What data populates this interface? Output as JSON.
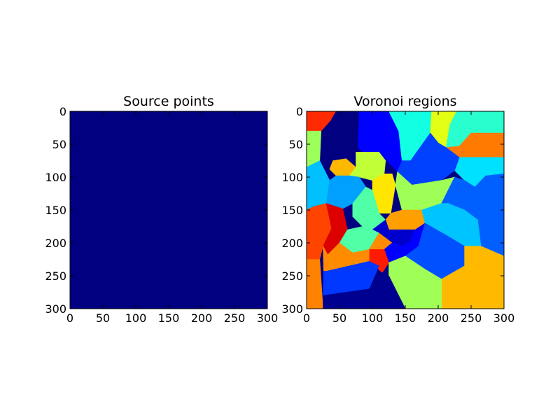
{
  "chart_data": [
    {
      "type": "heatmap",
      "title": "Source points",
      "xlim": [
        0,
        300
      ],
      "ylim": [
        300,
        0
      ],
      "xticks": [
        0,
        50,
        100,
        150,
        200,
        250,
        300
      ],
      "yticks": [
        0,
        50,
        100,
        150,
        200,
        250,
        300
      ],
      "xlabel": "",
      "ylabel": "",
      "background_color": "#000080",
      "colormap": "jet",
      "grid": false
    },
    {
      "type": "heatmap",
      "title": "Voronoi regions",
      "xlim": [
        0,
        300
      ],
      "ylim": [
        300,
        0
      ],
      "xticks": [
        0,
        50,
        100,
        150,
        200,
        250,
        300
      ],
      "yticks": [
        0,
        50,
        100,
        150,
        200,
        250,
        300
      ],
      "xlabel": "",
      "ylabel": "",
      "colormap": "jet",
      "grid": false,
      "regions": [
        {
          "color": "#ff2a00",
          "polygon": [
            [
              0,
              0
            ],
            [
              45,
              0
            ],
            [
              38,
              12
            ],
            [
              22,
              30
            ],
            [
              0,
              30
            ]
          ]
        },
        {
          "color": "#000080",
          "polygon": [
            [
              45,
              0
            ],
            [
              80,
              0
            ],
            [
              78,
              55
            ],
            [
              60,
              55
            ],
            [
              50,
              45
            ],
            [
              42,
              30
            ],
            [
              38,
              12
            ]
          ]
        },
        {
          "color": "#0000ff",
          "polygon": [
            [
              80,
              0
            ],
            [
              125,
              0
            ],
            [
              140,
              30
            ],
            [
              145,
              75
            ],
            [
              138,
              92
            ],
            [
              110,
              62
            ],
            [
              85,
              62
            ],
            [
              78,
              55
            ]
          ]
        },
        {
          "color": "#13ffe3",
          "polygon": [
            [
              125,
              0
            ],
            [
              190,
              0
            ],
            [
              188,
              33
            ],
            [
              158,
              75
            ],
            [
              145,
              75
            ],
            [
              140,
              30
            ]
          ]
        },
        {
          "color": "#e3ff13",
          "polygon": [
            [
              190,
              0
            ],
            [
              228,
              0
            ],
            [
              218,
              20
            ],
            [
              212,
              55
            ],
            [
              200,
              48
            ],
            [
              188,
              33
            ]
          ]
        },
        {
          "color": "#29ffce",
          "polygon": [
            [
              228,
              0
            ],
            [
              300,
              0
            ],
            [
              300,
              33
            ],
            [
              250,
              33
            ],
            [
              232,
              53
            ],
            [
              212,
              55
            ],
            [
              218,
              20
            ]
          ]
        },
        {
          "color": "#ff7a00",
          "polygon": [
            [
              250,
              33
            ],
            [
              300,
              33
            ],
            [
              300,
              70
            ],
            [
              232,
              70
            ],
            [
              212,
              55
            ],
            [
              232,
              53
            ]
          ]
        },
        {
          "color": "#00e0ff",
          "polygon": [
            [
              232,
              70
            ],
            [
              300,
              70
            ],
            [
              300,
              95
            ],
            [
              272,
              98
            ],
            [
              256,
              115
            ],
            [
              240,
              105
            ],
            [
              225,
              90
            ]
          ]
        },
        {
          "color": "#0040ff",
          "polygon": [
            [
              188,
              33
            ],
            [
              200,
              48
            ],
            [
              212,
              55
            ],
            [
              232,
              70
            ],
            [
              225,
              90
            ],
            [
              205,
              105
            ],
            [
              160,
              112
            ],
            [
              138,
              92
            ],
            [
              145,
              75
            ],
            [
              158,
              75
            ]
          ]
        },
        {
          "color": "#9cff5a",
          "polygon": [
            [
              0,
              30
            ],
            [
              22,
              30
            ],
            [
              20,
              75
            ],
            [
              0,
              85
            ]
          ]
        },
        {
          "color": "#00c0ff",
          "polygon": [
            [
              0,
              85
            ],
            [
              20,
              75
            ],
            [
              35,
              105
            ],
            [
              30,
              140
            ],
            [
              10,
              145
            ],
            [
              0,
              150
            ]
          ]
        },
        {
          "color": "#ffb800",
          "polygon": [
            [
              40,
              75
            ],
            [
              60,
              72
            ],
            [
              75,
              85
            ],
            [
              65,
              98
            ],
            [
              45,
              98
            ],
            [
              35,
              88
            ]
          ]
        },
        {
          "color": "#c0ff36",
          "polygon": [
            [
              75,
              62
            ],
            [
              110,
              62
            ],
            [
              120,
              75
            ],
            [
              118,
              95
            ],
            [
              100,
              105
            ],
            [
              80,
              100
            ],
            [
              65,
              98
            ],
            [
              75,
              85
            ]
          ]
        },
        {
          "color": "#00a0ff",
          "polygon": [
            [
              35,
              105
            ],
            [
              45,
              98
            ],
            [
              65,
              98
            ],
            [
              80,
              100
            ],
            [
              90,
              115
            ],
            [
              70,
              140
            ],
            [
              55,
              148
            ],
            [
              30,
              140
            ]
          ]
        },
        {
          "color": "#ffe600",
          "polygon": [
            [
              118,
              95
            ],
            [
              130,
              95
            ],
            [
              135,
              112
            ],
            [
              128,
              155
            ],
            [
              110,
              155
            ],
            [
              100,
              120
            ],
            [
              100,
              105
            ]
          ]
        },
        {
          "color": "#a0ff56",
          "polygon": [
            [
              138,
              92
            ],
            [
              160,
              112
            ],
            [
              205,
              105
            ],
            [
              225,
              100
            ],
            [
              205,
              140
            ],
            [
              175,
              150
            ],
            [
              145,
              150
            ],
            [
              135,
              112
            ]
          ]
        },
        {
          "color": "#50ffa6",
          "polygon": [
            [
              90,
              115
            ],
            [
              100,
              120
            ],
            [
              110,
              155
            ],
            [
              120,
              165
            ],
            [
              100,
              180
            ],
            [
              85,
              175
            ],
            [
              70,
              160
            ],
            [
              70,
              140
            ]
          ]
        },
        {
          "color": "#0060ff",
          "polygon": [
            [
              225,
              100
            ],
            [
              240,
              105
            ],
            [
              256,
              115
            ],
            [
              272,
              98
            ],
            [
              300,
              95
            ],
            [
              300,
              220
            ],
            [
              265,
              205
            ],
            [
              260,
              165
            ],
            [
              240,
              150
            ],
            [
              215,
              140
            ],
            [
              205,
              140
            ]
          ]
        },
        {
          "color": "#ff4400",
          "polygon": [
            [
              0,
              150
            ],
            [
              10,
              145
            ],
            [
              30,
              140
            ],
            [
              38,
              178
            ],
            [
              25,
              205
            ],
            [
              20,
              225
            ],
            [
              0,
              225
            ]
          ]
        },
        {
          "color": "#dd0000",
          "polygon": [
            [
              30,
              140
            ],
            [
              55,
              148
            ],
            [
              62,
              180
            ],
            [
              50,
              200
            ],
            [
              32,
              218
            ],
            [
              25,
              205
            ],
            [
              38,
              178
            ]
          ]
        },
        {
          "color": "#ffa000",
          "polygon": [
            [
              128,
              155
            ],
            [
              145,
              150
            ],
            [
              175,
              150
            ],
            [
              180,
              170
            ],
            [
              165,
              180
            ],
            [
              125,
              180
            ],
            [
              120,
              165
            ]
          ]
        },
        {
          "color": "#00c4ff",
          "polygon": [
            [
              175,
              150
            ],
            [
              205,
              140
            ],
            [
              215,
              140
            ],
            [
              240,
              150
            ],
            [
              260,
              165
            ],
            [
              265,
              205
            ],
            [
              240,
              205
            ],
            [
              215,
              190
            ],
            [
              180,
              170
            ]
          ]
        },
        {
          "color": "#0000cc",
          "polygon": [
            [
              120,
              165
            ],
            [
              125,
              180
            ],
            [
              165,
              180
            ],
            [
              155,
              200
            ],
            [
              145,
              205
            ],
            [
              130,
              200
            ],
            [
              110,
              185
            ],
            [
              100,
              180
            ]
          ]
        },
        {
          "color": "#50ffa6",
          "polygon": [
            [
              62,
              180
            ],
            [
              85,
              175
            ],
            [
              100,
              180
            ],
            [
              110,
              185
            ],
            [
              95,
              210
            ],
            [
              70,
              215
            ],
            [
              50,
              200
            ]
          ]
        },
        {
          "color": "#ff8c00",
          "polygon": [
            [
              110,
              185
            ],
            [
              130,
              200
            ],
            [
              118,
              210
            ],
            [
              100,
              210
            ],
            [
              95,
              210
            ]
          ]
        },
        {
          "color": "#0000ff",
          "polygon": [
            [
              130,
              200
            ],
            [
              145,
              205
            ],
            [
              155,
              200
            ],
            [
              165,
              180
            ],
            [
              180,
              170
            ],
            [
              170,
              205
            ],
            [
              150,
              220
            ],
            [
              125,
              230
            ],
            [
              118,
              210
            ]
          ]
        },
        {
          "color": "#ff1a00",
          "polygon": [
            [
              95,
              210
            ],
            [
              100,
              210
            ],
            [
              118,
              210
            ],
            [
              125,
              230
            ],
            [
              115,
              245
            ],
            [
              95,
              228
            ]
          ]
        },
        {
          "color": "#ff8200",
          "polygon": [
            [
              0,
              225
            ],
            [
              20,
              225
            ],
            [
              25,
              300
            ],
            [
              0,
              300
            ]
          ]
        },
        {
          "color": "#ff8c00",
          "polygon": [
            [
              25,
              205
            ],
            [
              32,
              218
            ],
            [
              50,
              200
            ],
            [
              70,
              215
            ],
            [
              95,
              210
            ],
            [
              95,
              228
            ],
            [
              30,
              243
            ],
            [
              26,
              243
            ]
          ]
        },
        {
          "color": "#0038ff",
          "polygon": [
            [
              26,
              243
            ],
            [
              30,
              243
            ],
            [
              95,
              228
            ],
            [
              110,
              235
            ],
            [
              95,
              270
            ],
            [
              25,
              280
            ]
          ]
        },
        {
          "color": "#0050ff",
          "polygon": [
            [
              170,
              205
            ],
            [
              180,
              170
            ],
            [
              215,
              190
            ],
            [
              240,
              205
            ],
            [
              240,
              235
            ],
            [
              205,
              255
            ],
            [
              180,
              240
            ],
            [
              150,
              220
            ]
          ]
        },
        {
          "color": "#ffba00",
          "polygon": [
            [
              240,
              205
            ],
            [
              265,
              205
            ],
            [
              300,
              220
            ],
            [
              300,
              300
            ],
            [
              205,
              300
            ],
            [
              205,
              255
            ],
            [
              240,
              235
            ]
          ]
        },
        {
          "color": "#a0ff56",
          "polygon": [
            [
              125,
              230
            ],
            [
              150,
              220
            ],
            [
              180,
              240
            ],
            [
              205,
              255
            ],
            [
              205,
              300
            ],
            [
              150,
              300
            ],
            [
              135,
              270
            ],
            [
              125,
              250
            ]
          ]
        },
        {
          "color": "#000090",
          "polygon": [
            [
              25,
              280
            ],
            [
              95,
              270
            ],
            [
              115,
              245
            ],
            [
              125,
              250
            ],
            [
              135,
              270
            ],
            [
              150,
              300
            ],
            [
              25,
              300
            ]
          ]
        }
      ]
    }
  ]
}
